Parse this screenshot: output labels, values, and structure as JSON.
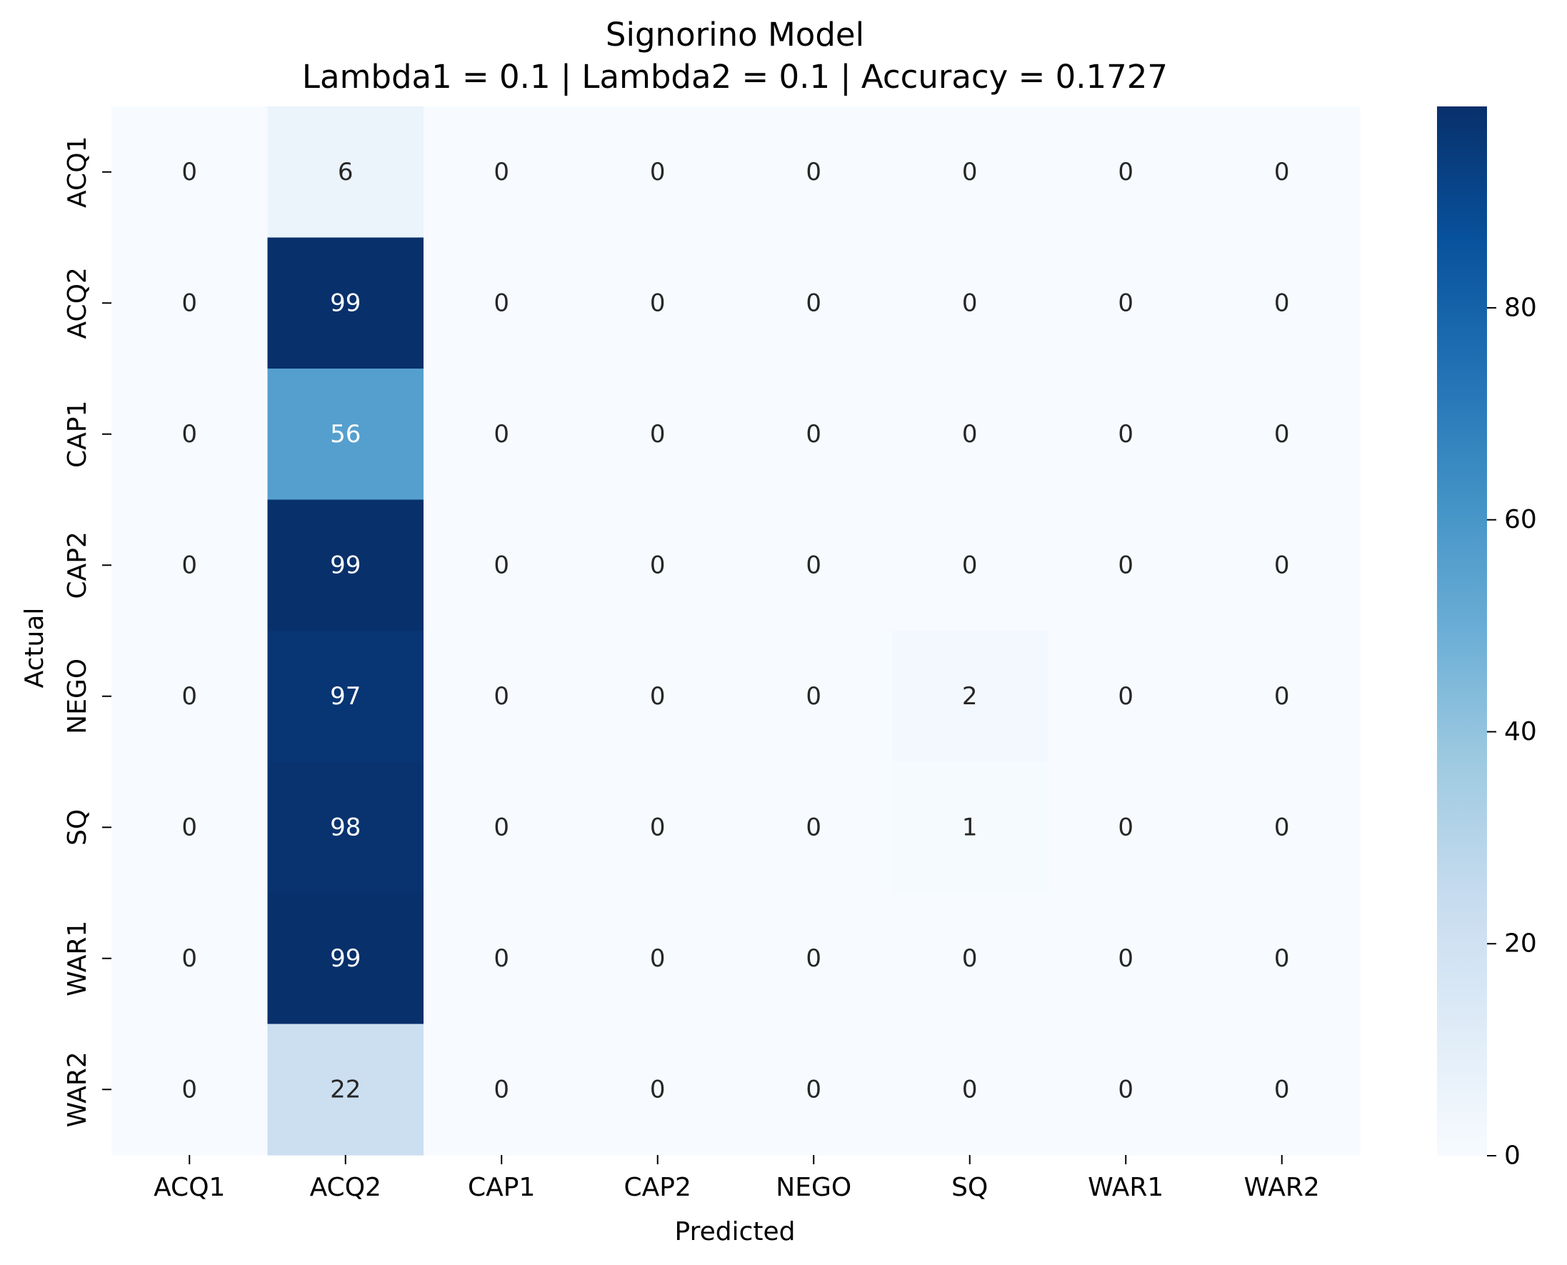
{
  "chart_data": {
    "type": "heatmap",
    "title": "Signorino Model",
    "subtitle": "Lambda1 = 0.1 | Lambda2 = 0.1 | Accuracy = 0.1727",
    "xlabel": "Predicted",
    "ylabel": "Actual",
    "x_categories": [
      "ACQ1",
      "ACQ2",
      "CAP1",
      "CAP2",
      "NEGO",
      "SQ",
      "WAR1",
      "WAR2"
    ],
    "y_categories": [
      "ACQ1",
      "ACQ2",
      "CAP1",
      "CAP2",
      "NEGO",
      "SQ",
      "WAR1",
      "WAR2"
    ],
    "values": [
      [
        0,
        6,
        0,
        0,
        0,
        0,
        0,
        0
      ],
      [
        0,
        99,
        0,
        0,
        0,
        0,
        0,
        0
      ],
      [
        0,
        56,
        0,
        0,
        0,
        0,
        0,
        0
      ],
      [
        0,
        99,
        0,
        0,
        0,
        0,
        0,
        0
      ],
      [
        0,
        97,
        0,
        0,
        0,
        2,
        0,
        0
      ],
      [
        0,
        98,
        0,
        0,
        0,
        1,
        0,
        0
      ],
      [
        0,
        99,
        0,
        0,
        0,
        0,
        0,
        0
      ],
      [
        0,
        22,
        0,
        0,
        0,
        0,
        0,
        0
      ]
    ],
    "colormap": "Blues",
    "colorbar": {
      "min": 0,
      "max": 99,
      "ticks": [
        0,
        20,
        40,
        60,
        80
      ]
    }
  }
}
